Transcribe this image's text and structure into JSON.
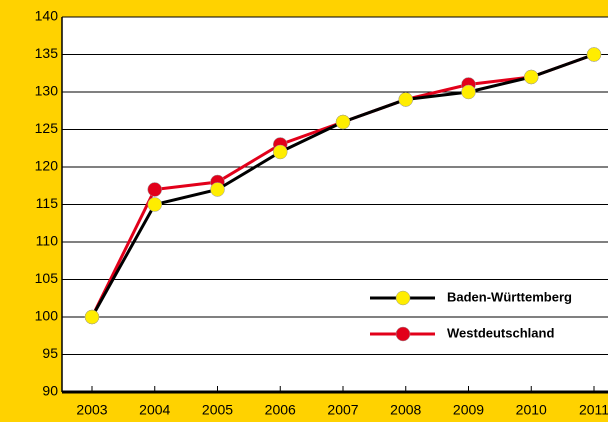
{
  "chart_data": {
    "type": "line",
    "categories": [
      "2003",
      "2004",
      "2005",
      "2006",
      "2007",
      "2008",
      "2009",
      "2010",
      "2011"
    ],
    "series": [
      {
        "name": "Westdeutschland",
        "color": "#e2001a",
        "marker_color": "#e2001a",
        "values": [
          100,
          117,
          118,
          123,
          126,
          129,
          131,
          132,
          135
        ]
      },
      {
        "name": "Baden-Württemberg",
        "color": "#000000",
        "marker_color": "#ffed00",
        "values": [
          100,
          115,
          117,
          122,
          126,
          129,
          130,
          132,
          135
        ]
      }
    ],
    "ylim": [
      90,
      140
    ],
    "yticks": [
      90,
      95,
      100,
      105,
      110,
      115,
      120,
      125,
      130,
      135,
      140
    ],
    "grid": true,
    "legend": "lower right"
  }
}
